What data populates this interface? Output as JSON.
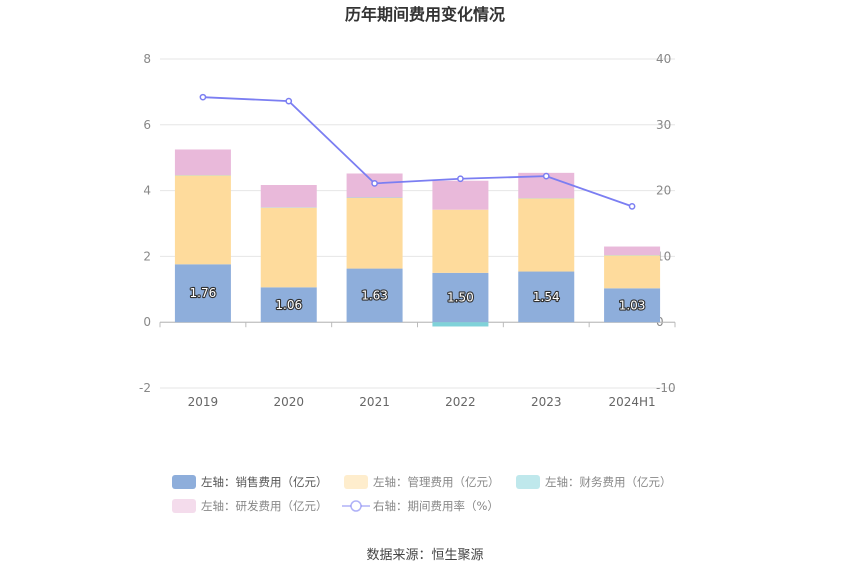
{
  "chart_data": {
    "type": "bar",
    "title": "历年期间费用变化情况",
    "categories": [
      "2019",
      "2020",
      "2021",
      "2022",
      "2023",
      "2024H1"
    ],
    "left_axis": {
      "ylim": [
        -2,
        8
      ],
      "ticks": [
        "-2",
        "0",
        "2",
        "4",
        "6",
        "8"
      ]
    },
    "right_axis": {
      "ylim": [
        -10,
        40
      ],
      "ticks": [
        "-10",
        "0",
        "10",
        "20",
        "30",
        "40"
      ]
    },
    "series": [
      {
        "name": "左轴：销售费用（亿元）",
        "kind": "bar",
        "axis": "left",
        "color": "#8eaedb",
        "values": [
          1.76,
          1.06,
          1.63,
          1.5,
          1.54,
          1.03
        ],
        "labels": [
          "1.76",
          "1.06",
          "1.63",
          "1.50",
          "1.54",
          "1.03"
        ]
      },
      {
        "name": "左轴：管理费用（亿元）",
        "kind": "bar",
        "axis": "left",
        "color": "#fedb9c",
        "values": [
          2.7,
          2.42,
          2.15,
          1.92,
          2.22,
          1.0
        ]
      },
      {
        "name": "左轴：财务费用（亿元）",
        "kind": "bar",
        "axis": "left",
        "color": "#7fd2d9",
        "values": [
          0.01,
          0.01,
          0.01,
          -0.13,
          0.01,
          0.01
        ]
      },
      {
        "name": "左轴：研发费用（亿元）",
        "kind": "bar",
        "axis": "left",
        "color": "#e9b9da",
        "values": [
          0.78,
          0.68,
          0.73,
          0.88,
          0.77,
          0.26
        ]
      },
      {
        "name": "右轴：期间费用率（%）",
        "kind": "line",
        "axis": "right",
        "color": "#7b7ef2",
        "values": [
          34.2,
          33.6,
          21.1,
          21.8,
          22.2,
          17.6
        ]
      }
    ],
    "legend_position": "bottom",
    "grid": true
  },
  "source": "数据来源：恒生聚源"
}
